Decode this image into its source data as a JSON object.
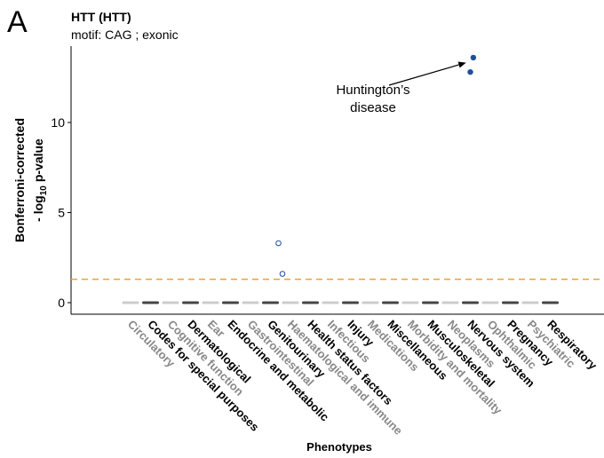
{
  "panel_label": "A",
  "colors": {
    "threshold": "#f0a030",
    "significant": "#1f4e9c",
    "nonsignificant_outline": "#1f4e9c",
    "category_dark": "#444444",
    "category_light": "#cccccc",
    "label_dark": "#000000",
    "label_light": "#888888"
  },
  "chart_data": {
    "type": "scatter",
    "title": "HTT (HTT)",
    "subtitle": "motif: CAG ; exonic",
    "xlabel": "Phenotypes",
    "ylabel_line1": "Bonferroni-corrected",
    "ylabel_prefix": "- log",
    "ylabel_sub": "10",
    "ylabel_suffix": "p-value",
    "ylim": [
      0,
      14
    ],
    "yticks": [
      0,
      5,
      10
    ],
    "threshold": 1.3,
    "grid": false,
    "categories": [
      {
        "name": "Circulatory",
        "shade": "light"
      },
      {
        "name": "Codes for special purposes",
        "shade": "dark"
      },
      {
        "name": "Cognitive function",
        "shade": "light"
      },
      {
        "name": "Dermatological",
        "shade": "dark"
      },
      {
        "name": "Ear",
        "shade": "light"
      },
      {
        "name": "Endocrine and metabolic",
        "shade": "dark"
      },
      {
        "name": "Gastrointestinal",
        "shade": "light"
      },
      {
        "name": "Genitourinary",
        "shade": "dark"
      },
      {
        "name": "Haematological and immune",
        "shade": "light"
      },
      {
        "name": "Health status factors",
        "shade": "dark"
      },
      {
        "name": "Infectious",
        "shade": "light"
      },
      {
        "name": "Injury",
        "shade": "dark"
      },
      {
        "name": "Medications",
        "shade": "light"
      },
      {
        "name": "Miscellaneous",
        "shade": "dark"
      },
      {
        "name": "Morbidity and mortality",
        "shade": "light"
      },
      {
        "name": "Musculoskeletal",
        "shade": "dark"
      },
      {
        "name": "Neoplasms",
        "shade": "light"
      },
      {
        "name": "Nervous system",
        "shade": "dark"
      },
      {
        "name": "Ophthalmic",
        "shade": "light"
      },
      {
        "name": "Pregnancy",
        "shade": "dark"
      },
      {
        "name": "Psychiatric",
        "shade": "light"
      },
      {
        "name": "Respiratory",
        "shade": "dark"
      }
    ],
    "points": [
      {
        "category": "Genitourinary",
        "offset": 0.4,
        "y": 3.3,
        "significant": false
      },
      {
        "category": "Haematological and immune",
        "offset": -0.4,
        "y": 1.6,
        "significant": false
      },
      {
        "category": "Nervous system",
        "offset": 0.0,
        "y": 12.8,
        "significant": true
      },
      {
        "category": "Nervous system",
        "offset": 0.15,
        "y": 13.6,
        "significant": true
      }
    ],
    "annotation": {
      "line1": "Huntington’s",
      "line2": "disease",
      "target_category": "Nervous system",
      "target_y": 13.4
    }
  }
}
